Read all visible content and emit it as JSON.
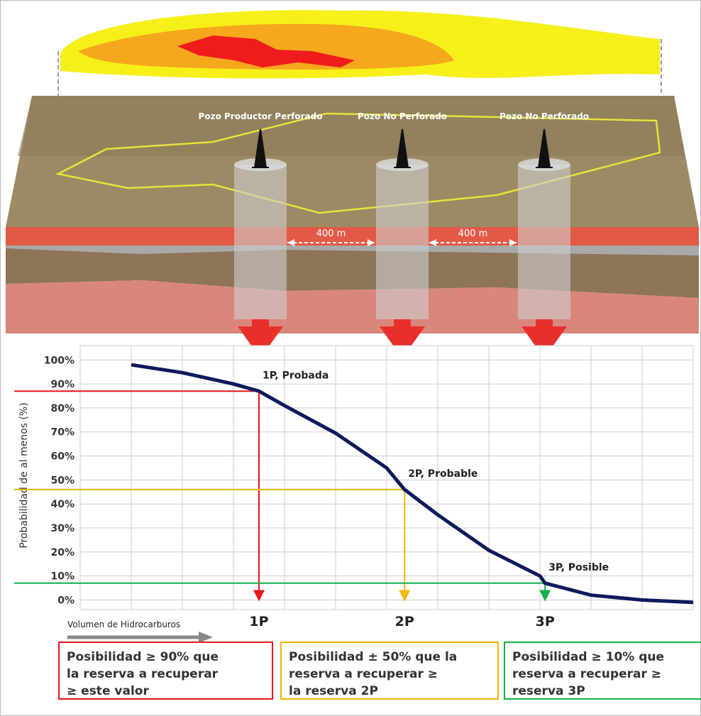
{
  "diagram": {
    "wells": [
      "Pozo Productor Perforado",
      "Pozo No Perforado",
      "Pozo No Perforado"
    ],
    "spacings": [
      "400 m",
      "400 m"
    ]
  },
  "chart_data": {
    "type": "line",
    "ylabel": "Probabilidad de al menos (%)",
    "xlabel": "Volumen de Hidrocarburos",
    "x": [
      1,
      2,
      3,
      3.5,
      4,
      5,
      6,
      6.35,
      7,
      8,
      9,
      9.1,
      10,
      11,
      12
    ],
    "values": [
      98,
      94.7,
      90,
      87,
      81,
      69.5,
      55,
      46,
      35.5,
      20.7,
      10,
      7,
      2,
      0,
      -1
    ],
    "color": "#0d1a5c",
    "xlim": [
      0,
      12
    ],
    "ylim": [
      -4,
      106
    ],
    "yticks": [
      {
        "value": 0,
        "label": "0%"
      },
      {
        "value": 10,
        "label": "10%"
      },
      {
        "value": 20,
        "label": "20%"
      },
      {
        "value": 30,
        "label": "30%"
      },
      {
        "value": 40,
        "label": "40%"
      },
      {
        "value": 50,
        "label": "50%"
      },
      {
        "value": 60,
        "label": "60%"
      },
      {
        "value": 70,
        "label": "70%"
      },
      {
        "value": 80,
        "label": "80%"
      },
      {
        "value": 90,
        "label": "90%"
      },
      {
        "value": 100,
        "label": "100%"
      }
    ],
    "grid": true,
    "markers": [
      {
        "x": 3.5,
        "y": 87,
        "color": "#e8141b",
        "label": "1P",
        "annotation": "1P, Probada"
      },
      {
        "x": 6.35,
        "y": 46,
        "color": "#f2b705",
        "label": "2P",
        "annotation": "2P, Probable"
      },
      {
        "x": 9.1,
        "y": 7,
        "color": "#12b04a",
        "label": "3P",
        "annotation": "3P, Posible"
      }
    ]
  },
  "boxes": [
    {
      "text": [
        "Posibilidad ≥ 90% que",
        "la reserva a recuperar",
        "≥  este valor"
      ],
      "color": "#e8141b"
    },
    {
      "text": [
        "Posibilidad ± 50% que la",
        "reserva  a  recuperar  ≥",
        "la reserva 2P"
      ],
      "color": "#f2b705"
    },
    {
      "text": [
        "Posibilidad ≥ 10% que",
        "reserva a recuperar ≥",
        "reserva 3P"
      ],
      "color": "#12b04a"
    }
  ]
}
